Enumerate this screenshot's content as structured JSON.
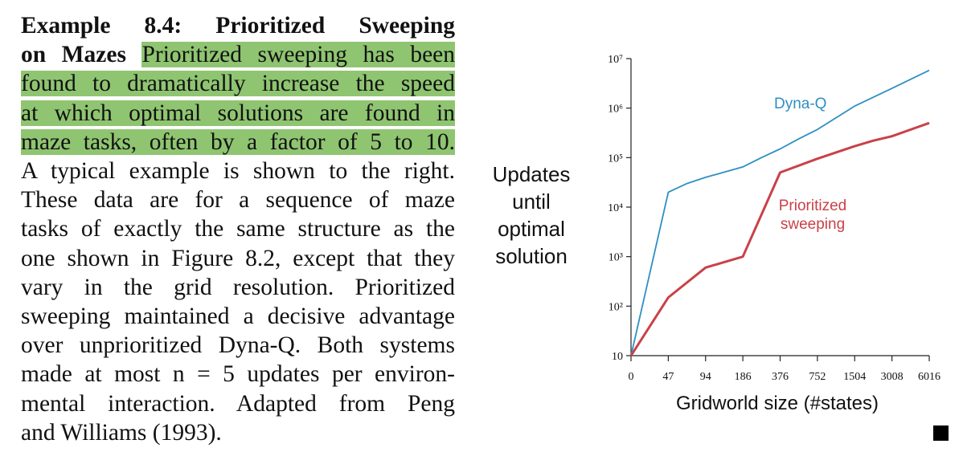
{
  "text": {
    "lines": [
      {
        "parts": [
          {
            "t": "Example 8.4: Prioritized Sweeping",
            "bold": true,
            "hl": false
          }
        ],
        "justify": true
      },
      {
        "parts": [
          {
            "t": "on Mazes",
            "bold": true,
            "hl": false
          },
          {
            "t": "  ",
            "bold": false,
            "hl": false
          },
          {
            "t": "Prioritized sweeping has been",
            "bold": false,
            "hl": true
          }
        ],
        "justify": true
      },
      {
        "parts": [
          {
            "t": "found to dramatically increase the speed",
            "bold": false,
            "hl": true
          }
        ],
        "justify": true
      },
      {
        "parts": [
          {
            "t": "at which optimal solutions are found in",
            "bold": false,
            "hl": true
          }
        ],
        "justify": true
      },
      {
        "parts": [
          {
            "t": "maze tasks, often by a factor of 5 to 10.",
            "bold": false,
            "hl": true
          }
        ],
        "justify": true
      },
      {
        "parts": [
          {
            "t": "A typical example is shown to the right.",
            "bold": false,
            "hl": false
          }
        ],
        "justify": true
      },
      {
        "parts": [
          {
            "t": "These data are for a sequence of maze",
            "bold": false,
            "hl": false
          }
        ],
        "justify": true
      },
      {
        "parts": [
          {
            "t": "tasks of exactly the same structure as the",
            "bold": false,
            "hl": false
          }
        ],
        "justify": true
      },
      {
        "parts": [
          {
            "t": "one shown in Figure 8.2, except that they",
            "bold": false,
            "hl": false
          }
        ],
        "justify": true
      },
      {
        "parts": [
          {
            "t": "vary in the grid resolution.  Prioritized",
            "bold": false,
            "hl": false
          }
        ],
        "justify": true
      },
      {
        "parts": [
          {
            "t": "sweeping maintained a decisive advantage",
            "bold": false,
            "hl": false
          }
        ],
        "justify": true
      },
      {
        "parts": [
          {
            "t": "over unprioritized Dyna-Q. Both systems",
            "bold": false,
            "hl": false
          }
        ],
        "justify": true
      },
      {
        "parts": [
          {
            "t": "made at most n = 5 updates per environ-",
            "bold": false,
            "hl": false
          }
        ],
        "justify": true
      },
      {
        "parts": [
          {
            "t": "mental interaction. Adapted from Peng",
            "bold": false,
            "hl": false
          }
        ],
        "justify": true
      },
      {
        "parts": [
          {
            "t": "and Williams (1993).",
            "bold": false,
            "hl": false
          }
        ],
        "justify": false
      }
    ]
  },
  "chart_data": {
    "type": "line",
    "xlabel": "Gridworld size (#states)",
    "ylabel_lines": [
      "Updates",
      "until",
      "optimal",
      "solution"
    ],
    "x": [
      "0",
      "47",
      "94",
      "186",
      "376",
      "752",
      "1504",
      "3008",
      "6016"
    ],
    "y_scale": "log",
    "ylim": [
      10,
      10000000
    ],
    "y_ticks": [
      {
        "label": "10",
        "value": 10
      },
      {
        "label": "10²",
        "value": 100
      },
      {
        "label": "10³",
        "value": 1000
      },
      {
        "label": "10⁴",
        "value": 10000
      },
      {
        "label": "10⁵",
        "value": 100000
      },
      {
        "label": "10⁶",
        "value": 1000000
      },
      {
        "label": "10⁷",
        "value": 10000000
      }
    ],
    "series": [
      {
        "name": "Dyna-Q",
        "color": "#2f8fc3",
        "points": [
          [
            0,
            10
          ],
          [
            1,
            20000
          ],
          [
            1.5,
            30000
          ],
          [
            2,
            40000
          ],
          [
            3,
            65000
          ],
          [
            3.5,
            100000
          ],
          [
            4,
            150000
          ],
          [
            4.5,
            240000
          ],
          [
            5,
            370000
          ],
          [
            6,
            1100000
          ],
          [
            7,
            2500000
          ],
          [
            8,
            5800000
          ]
        ]
      },
      {
        "name": "Prioritized sweeping",
        "label_lines": [
          "Prioritized",
          "sweeping"
        ],
        "color": "#c94148",
        "points": [
          [
            0,
            10
          ],
          [
            1,
            150
          ],
          [
            2,
            600
          ],
          [
            3,
            1000
          ],
          [
            4,
            50000
          ],
          [
            5,
            95000
          ],
          [
            6,
            170000
          ],
          [
            6.5,
            220000
          ],
          [
            7,
            270000
          ],
          [
            8,
            500000
          ]
        ]
      }
    ]
  }
}
